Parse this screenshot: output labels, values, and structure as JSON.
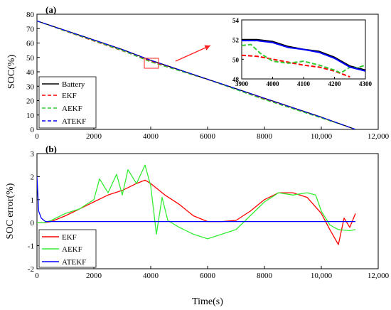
{
  "chart_data": [
    {
      "type": "line",
      "panel_label": "(a)",
      "ylabel": "SOC(%)",
      "xlabel": "",
      "xlim": [
        0,
        12000
      ],
      "ylim": [
        0,
        85
      ],
      "xticks": [
        "0",
        "2000",
        "4000",
        "6000",
        "8000",
        "10,000",
        "12,000"
      ],
      "yticks": [
        "0",
        "10",
        "20",
        "30",
        "40",
        "50",
        "60",
        "70",
        "80"
      ],
      "legend_position": "bottom-left",
      "series": [
        {
          "name": "Battery",
          "color": "#000000",
          "dashed": false,
          "x": [
            0,
            1000,
            2000,
            3000,
            4000,
            5000,
            6000,
            7000,
            8000,
            9000,
            10000,
            11000,
            11200
          ],
          "y": [
            80,
            73,
            66,
            59,
            51,
            44,
            37,
            30,
            23,
            16,
            9,
            1.5,
            0
          ]
        },
        {
          "name": "EKF",
          "color": "#ff0000",
          "dashed": true,
          "x": [
            0,
            1000,
            2000,
            3000,
            4000,
            5000,
            6000,
            7000,
            8000,
            9000,
            10000,
            11000,
            11200
          ],
          "y": [
            80,
            72.5,
            65.2,
            58,
            50.5,
            43.4,
            36.8,
            29.6,
            22.4,
            15.4,
            8.7,
            1.4,
            0
          ]
        },
        {
          "name": "AEKF",
          "color": "#33cc33",
          "dashed": true,
          "x": [
            0,
            1000,
            2000,
            3000,
            4000,
            5000,
            6000,
            7000,
            8000,
            9000,
            10000,
            11000,
            11200
          ],
          "y": [
            80,
            72.6,
            65.5,
            58.2,
            49.8,
            43.3,
            36.9,
            29.4,
            22,
            15.2,
            8.4,
            1.5,
            0
          ]
        },
        {
          "name": "ATEKF",
          "color": "#0000ff",
          "dashed": true,
          "x": [
            0,
            1000,
            2000,
            3000,
            4000,
            5000,
            6000,
            7000,
            8000,
            9000,
            10000,
            11000,
            11200
          ],
          "y": [
            80,
            73,
            66,
            59,
            51,
            44,
            37,
            30,
            23,
            16,
            9,
            1.5,
            0
          ]
        }
      ],
      "inset": {
        "xlim": [
          3900,
          4300
        ],
        "ylim": [
          48,
          54
        ],
        "xticks": [
          "3900",
          "4000",
          "4100",
          "4200",
          "4300"
        ],
        "yticks": [
          "48",
          "50",
          "52",
          "54"
        ],
        "series": [
          {
            "name": "Battery",
            "x": [
              3900,
              3950,
              4000,
              4050,
              4100,
              4150,
              4200,
              4250,
              4300
            ],
            "y": [
              52,
              52,
              51.8,
              51.3,
              51,
              50.8,
              50.2,
              49.3,
              48.9
            ]
          },
          {
            "name": "EKF",
            "x": [
              3900,
              3950,
              4000,
              4050,
              4100,
              4150,
              4200,
              4250
            ],
            "y": [
              50.4,
              50.3,
              50,
              49.7,
              49.4,
              49.2,
              48.8,
              48.2
            ]
          },
          {
            "name": "AEKF",
            "x": [
              3900,
              3930,
              3960,
              4000,
              4050,
              4100,
              4150,
              4200,
              4220,
              4250,
              4270,
              4300
            ],
            "y": [
              51.4,
              51.5,
              50.6,
              49.8,
              49.6,
              49.8,
              49.4,
              48.9,
              48.6,
              49.2,
              49.1,
              49.4
            ]
          },
          {
            "name": "ATEKF",
            "x": [
              3900,
              3950,
              4000,
              4050,
              4100,
              4150,
              4200,
              4250,
              4300
            ],
            "y": [
              51.9,
              51.9,
              51.7,
              51.2,
              51,
              50.7,
              50.1,
              49.2,
              48.8
            ]
          }
        ]
      }
    },
    {
      "type": "line",
      "panel_label": "(b)",
      "ylabel": "SOC error(%)",
      "xlabel": "Time(s)",
      "xlim": [
        0,
        12000
      ],
      "ylim": [
        -2,
        3
      ],
      "xticks": [
        "0",
        "2000",
        "4000",
        "6000",
        "8000",
        "10,000",
        "12,000"
      ],
      "yticks": [
        "-2",
        "-1",
        "0",
        "1",
        "2",
        "3"
      ],
      "legend_position": "bottom-left",
      "series": [
        {
          "name": "EKF",
          "color": "#ff0000",
          "x": [
            0,
            250,
            500,
            1000,
            1500,
            2000,
            2500,
            3000,
            3500,
            3800,
            4000,
            4500,
            5000,
            5500,
            6000,
            6500,
            7000,
            7500,
            8000,
            8500,
            9000,
            9500,
            10000,
            10300,
            10600,
            10800,
            11000,
            11200
          ],
          "y": [
            0,
            0,
            0.05,
            0.3,
            0.6,
            0.9,
            1.2,
            1.4,
            1.7,
            1.85,
            1.7,
            1.2,
            0.8,
            0.3,
            0.05,
            0.05,
            0.1,
            0.5,
            1.0,
            1.3,
            1.3,
            1.1,
            0.4,
            -0.3,
            -0.95,
            0.2,
            -0.2,
            0.4
          ]
        },
        {
          "name": "AEKF",
          "color": "#33ee33",
          "x": [
            0,
            250,
            500,
            1000,
            1500,
            2000,
            2200,
            2500,
            2800,
            3000,
            3200,
            3500,
            3800,
            4000,
            4200,
            4400,
            4600,
            5000,
            5500,
            6000,
            6500,
            7000,
            7500,
            8000,
            8500,
            9000,
            9500,
            9800,
            10000,
            10300,
            10600,
            11000,
            11200
          ],
          "y": [
            0,
            0,
            0.1,
            0.4,
            0.6,
            1.0,
            1.9,
            1.3,
            2.1,
            1.2,
            2.3,
            1.7,
            2.5,
            1.6,
            -0.5,
            1.1,
            0.1,
            -0.2,
            -0.5,
            -0.7,
            -0.5,
            -0.3,
            0.3,
            0.9,
            1.3,
            1.2,
            1.3,
            1.2,
            0.5,
            -0.1,
            -0.3,
            -0.35,
            -0.3
          ]
        },
        {
          "name": "ATEKF",
          "color": "#0000ff",
          "x": [
            0,
            60,
            150,
            300,
            500,
            1000,
            2000,
            4000,
            6000,
            8000,
            10000,
            11200
          ],
          "y": [
            2.0,
            0.5,
            0.2,
            0.05,
            0.05,
            0.05,
            0.05,
            0.05,
            0.05,
            0.05,
            0.05,
            0.05
          ]
        }
      ]
    }
  ]
}
